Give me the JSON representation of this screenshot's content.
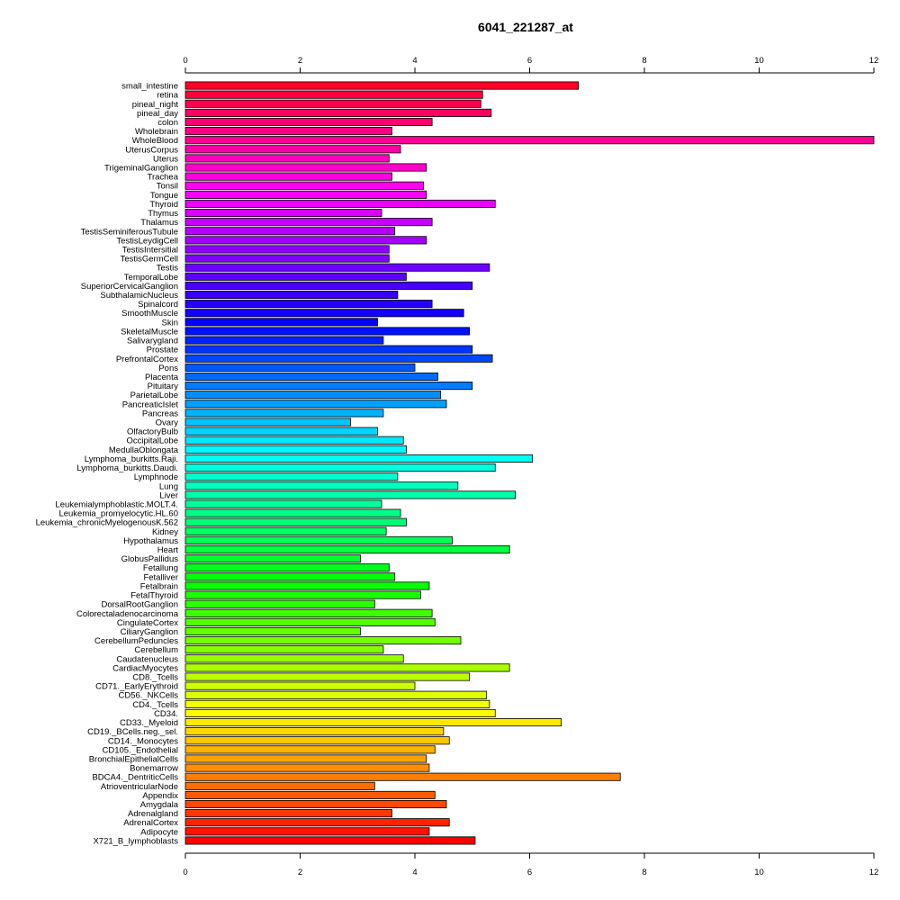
{
  "chart_data": {
    "type": "bar",
    "orientation": "horizontal",
    "title": "6041_221287_at",
    "xlabel": "",
    "ylabel": "",
    "xlim": [
      0,
      12
    ],
    "x_ticks": [
      0,
      2,
      4,
      6,
      8,
      10,
      12
    ],
    "x_axis_positions": [
      "top",
      "bottom"
    ],
    "grid": false,
    "legend": "none",
    "color_scheme": "rainbow",
    "categories": [
      "small_intestine",
      "retina",
      "pineal_night",
      "pineal_day",
      "colon",
      "Wholebrain",
      "WholeBlood",
      "UterusCorpus",
      "Uterus",
      "TrigeminalGanglion",
      "Trachea",
      "Tonsil",
      "Tongue",
      "Thyroid",
      "Thymus",
      "Thalamus",
      "TestisSeminiferousTubule",
      "TestisLeydigCell",
      "TestisIntersitial",
      "TestisGermCell",
      "Testis",
      "TemporalLobe",
      "SuperiorCervicalGanglion",
      "SubthalamicNucleus",
      "Spinalcord",
      "SmoothMuscle",
      "Skin",
      "SkeletalMuscle",
      "Salivarygland",
      "Prostate",
      "PrefrontalCortex",
      "Pons",
      "Placenta",
      "Pituitary",
      "ParietalLobe",
      "PancreaticIslet",
      "Pancreas",
      "Ovary",
      "OlfactoryBulb",
      "OccipitalLobe",
      "MedullaOblongata",
      "Lymphoma_burkitts.Raji.",
      "Lymphoma_burkitts.Daudi.",
      "Lymphnode",
      "Lung",
      "Liver",
      "Leukemialymphoblastic.MOLT.4.",
      "Leukemia_promyelocytic.HL.60",
      "Leukemia_chronicMyelogenousK.562",
      "Kidney",
      "Hypothalamus",
      "Heart",
      "GlobusPallidus",
      "Fetallung",
      "Fetalliver",
      "Fetalbrain",
      "FetalThyroid",
      "DorsalRootGanglion",
      "Colorectaladenocarcinoma",
      "CingulateCortex",
      "CiliaryGanglion",
      "CerebellumPeduncles",
      "Cerebellum",
      "Caudatenucleus",
      "CardiacMyocytes",
      "CD8._Tcells",
      "CD71._EarlyErythroid",
      "CD56._NKCells",
      "CD4._Tcells",
      "CD34.",
      "CD33._Myeloid",
      "CD19._BCells.neg._sel.",
      "CD14._Monocytes",
      "CD105._Endothelial",
      "BronchialEpithelialCells",
      "Bonemarrow",
      "BDCA4._DentriticCells",
      "AtrioventricularNode",
      "Appendix",
      "Amygdala",
      "Adrenalgland",
      "AdrenalCortex",
      "Adipocyte",
      "X721_B_lymphoblasts"
    ],
    "values": [
      6.85,
      5.18,
      5.15,
      5.33,
      4.3,
      3.6,
      12.0,
      3.75,
      3.55,
      4.2,
      3.6,
      4.15,
      4.2,
      5.4,
      3.42,
      4.3,
      3.65,
      4.2,
      3.55,
      3.55,
      5.3,
      3.85,
      5.0,
      3.7,
      4.3,
      4.85,
      3.35,
      4.95,
      3.45,
      5.0,
      5.35,
      4.0,
      4.4,
      5.0,
      4.45,
      4.55,
      3.45,
      2.88,
      3.35,
      3.8,
      3.85,
      6.05,
      5.4,
      3.7,
      4.75,
      5.75,
      3.42,
      3.75,
      3.85,
      3.5,
      4.65,
      5.65,
      3.05,
      3.55,
      3.65,
      4.25,
      4.1,
      3.3,
      4.3,
      4.35,
      3.05,
      4.8,
      3.45,
      3.8,
      5.65,
      4.95,
      4.0,
      5.25,
      5.3,
      5.4,
      6.55,
      4.5,
      4.6,
      4.35,
      4.2,
      4.25,
      7.58,
      3.3,
      4.35,
      4.55,
      3.6,
      4.6,
      4.25,
      5.05
    ]
  }
}
